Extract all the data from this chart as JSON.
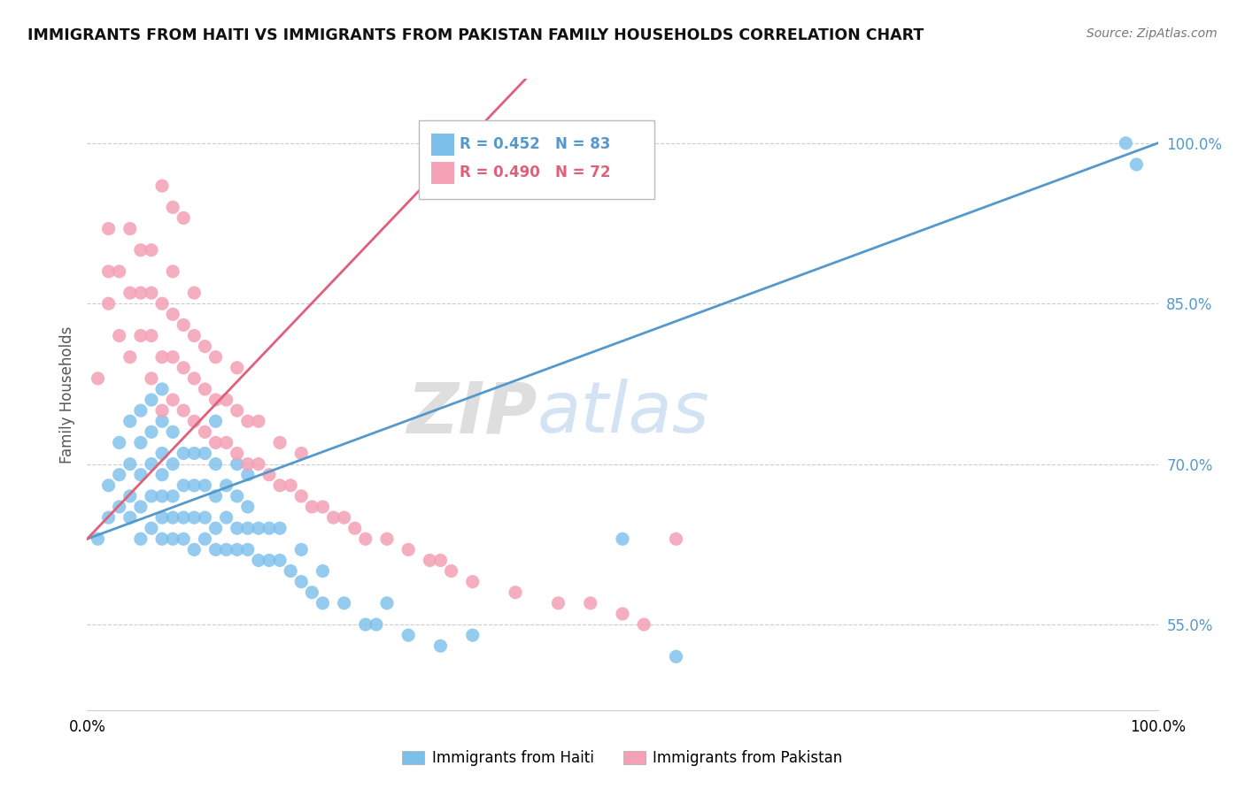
{
  "title": "IMMIGRANTS FROM HAITI VS IMMIGRANTS FROM PAKISTAN FAMILY HOUSEHOLDS CORRELATION CHART",
  "source": "Source: ZipAtlas.com",
  "ylabel": "Family Households",
  "xlim": [
    0.0,
    1.0
  ],
  "ylim": [
    0.47,
    1.06
  ],
  "ytick_vals": [
    0.55,
    0.7,
    0.85,
    1.0
  ],
  "ytick_labels": [
    "55.0%",
    "70.0%",
    "85.0%",
    "100.0%"
  ],
  "xtick_labels": [
    "0.0%",
    "100.0%"
  ],
  "haiti_color": "#7bbfea",
  "pakistan_color": "#f4a0b5",
  "haiti_line_color": "#5599cc",
  "pakistan_line_color": "#e0607a",
  "haiti_R": 0.452,
  "haiti_N": 83,
  "pakistan_R": 0.49,
  "pakistan_N": 72,
  "watermark_zip": "ZIP",
  "watermark_atlas": "atlas",
  "legend_haiti": "Immigrants from Haiti",
  "legend_pakistan": "Immigrants from Pakistan",
  "haiti_scatter_x": [
    0.01,
    0.02,
    0.02,
    0.03,
    0.03,
    0.03,
    0.04,
    0.04,
    0.04,
    0.04,
    0.05,
    0.05,
    0.05,
    0.05,
    0.05,
    0.06,
    0.06,
    0.06,
    0.06,
    0.06,
    0.07,
    0.07,
    0.07,
    0.07,
    0.07,
    0.07,
    0.07,
    0.08,
    0.08,
    0.08,
    0.08,
    0.08,
    0.09,
    0.09,
    0.09,
    0.09,
    0.1,
    0.1,
    0.1,
    0.1,
    0.11,
    0.11,
    0.11,
    0.11,
    0.12,
    0.12,
    0.12,
    0.12,
    0.12,
    0.13,
    0.13,
    0.13,
    0.14,
    0.14,
    0.14,
    0.14,
    0.15,
    0.15,
    0.15,
    0.15,
    0.16,
    0.16,
    0.17,
    0.17,
    0.18,
    0.18,
    0.19,
    0.2,
    0.2,
    0.21,
    0.22,
    0.22,
    0.24,
    0.26,
    0.27,
    0.28,
    0.3,
    0.33,
    0.36,
    0.5,
    0.55,
    0.97,
    0.98
  ],
  "haiti_scatter_y": [
    0.63,
    0.65,
    0.68,
    0.66,
    0.69,
    0.72,
    0.65,
    0.67,
    0.7,
    0.74,
    0.63,
    0.66,
    0.69,
    0.72,
    0.75,
    0.64,
    0.67,
    0.7,
    0.73,
    0.76,
    0.63,
    0.65,
    0.67,
    0.69,
    0.71,
    0.74,
    0.77,
    0.63,
    0.65,
    0.67,
    0.7,
    0.73,
    0.63,
    0.65,
    0.68,
    0.71,
    0.62,
    0.65,
    0.68,
    0.71,
    0.63,
    0.65,
    0.68,
    0.71,
    0.62,
    0.64,
    0.67,
    0.7,
    0.74,
    0.62,
    0.65,
    0.68,
    0.62,
    0.64,
    0.67,
    0.7,
    0.62,
    0.64,
    0.66,
    0.69,
    0.61,
    0.64,
    0.61,
    0.64,
    0.61,
    0.64,
    0.6,
    0.59,
    0.62,
    0.58,
    0.57,
    0.6,
    0.57,
    0.55,
    0.55,
    0.57,
    0.54,
    0.53,
    0.54,
    0.63,
    0.52,
    1.0,
    0.98
  ],
  "pakistan_scatter_x": [
    0.01,
    0.02,
    0.02,
    0.02,
    0.03,
    0.03,
    0.04,
    0.04,
    0.04,
    0.05,
    0.05,
    0.05,
    0.06,
    0.06,
    0.06,
    0.06,
    0.07,
    0.07,
    0.07,
    0.08,
    0.08,
    0.08,
    0.08,
    0.09,
    0.09,
    0.09,
    0.1,
    0.1,
    0.1,
    0.1,
    0.11,
    0.11,
    0.11,
    0.12,
    0.12,
    0.12,
    0.13,
    0.13,
    0.14,
    0.14,
    0.14,
    0.15,
    0.15,
    0.16,
    0.16,
    0.17,
    0.18,
    0.18,
    0.19,
    0.2,
    0.2,
    0.21,
    0.22,
    0.23,
    0.24,
    0.25,
    0.26,
    0.28,
    0.3,
    0.32,
    0.33,
    0.34,
    0.36,
    0.4,
    0.44,
    0.47,
    0.5,
    0.52,
    0.55,
    0.07,
    0.08,
    0.09
  ],
  "pakistan_scatter_y": [
    0.78,
    0.85,
    0.88,
    0.92,
    0.82,
    0.88,
    0.8,
    0.86,
    0.92,
    0.82,
    0.86,
    0.9,
    0.78,
    0.82,
    0.86,
    0.9,
    0.75,
    0.8,
    0.85,
    0.76,
    0.8,
    0.84,
    0.88,
    0.75,
    0.79,
    0.83,
    0.74,
    0.78,
    0.82,
    0.86,
    0.73,
    0.77,
    0.81,
    0.72,
    0.76,
    0.8,
    0.72,
    0.76,
    0.71,
    0.75,
    0.79,
    0.7,
    0.74,
    0.7,
    0.74,
    0.69,
    0.68,
    0.72,
    0.68,
    0.67,
    0.71,
    0.66,
    0.66,
    0.65,
    0.65,
    0.64,
    0.63,
    0.63,
    0.62,
    0.61,
    0.61,
    0.6,
    0.59,
    0.58,
    0.57,
    0.57,
    0.56,
    0.55,
    0.63,
    0.96,
    0.94,
    0.93
  ]
}
